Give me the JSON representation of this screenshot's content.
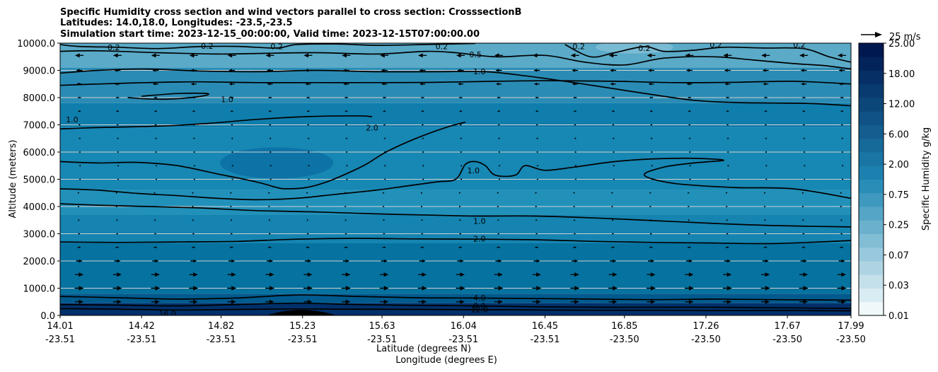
{
  "chart_data": {
    "type": "contour",
    "title_lines": [
      "Specific Humidity cross section and wind vectors parallel to cross section: CrosssectionB",
      "Latitudes: 14.0,18.0, Longitudes: -23.5,-23.5",
      "Simulation start time: 2023-12-15_00:00:00, Valid time: 2023-12-15T07:00:00.00"
    ],
    "ylabel": "Altitude (meters)",
    "xlabel_lat": "Latitude (degrees N)",
    "xlabel_lon": "Longitude (degrees E)",
    "ylim": [
      0,
      10000
    ],
    "y_ticks": [
      "0.0",
      "1000.0",
      "2000.0",
      "3000.0",
      "4000.0",
      "5000.0",
      "6000.0",
      "7000.0",
      "8000.0",
      "9000.0",
      "10000.0"
    ],
    "x_ticks": [
      {
        "lat": "14.01",
        "lon": "-23.51"
      },
      {
        "lat": "14.42",
        "lon": "-23.51"
      },
      {
        "lat": "14.82",
        "lon": "-23.51"
      },
      {
        "lat": "15.23",
        "lon": "-23.51"
      },
      {
        "lat": "15.63",
        "lon": "-23.51"
      },
      {
        "lat": "16.04",
        "lon": "-23.51"
      },
      {
        "lat": "16.45",
        "lon": "-23.51"
      },
      {
        "lat": "16.85",
        "lon": "-23.50"
      },
      {
        "lat": "17.26",
        "lon": "-23.50"
      },
      {
        "lat": "17.67",
        "lon": "-23.50"
      },
      {
        "lat": "17.99",
        "lon": "-23.50"
      }
    ],
    "colorbar": {
      "label": "Specific Humidity g/kg",
      "tick_labels": [
        "0.01",
        "0.03",
        "0.07",
        "0.25",
        "0.75",
        "2.00",
        "6.00",
        "12.00",
        "18.00",
        "25.00"
      ],
      "levels": 20,
      "colormap": "white-to-navy"
    },
    "wind_key": {
      "label": "25 m/s",
      "value": 25
    },
    "contour_labels": [
      {
        "text": "0.2",
        "lat": 14.28,
        "alt": 9850
      },
      {
        "text": "0.2",
        "lat": 14.75,
        "alt": 9900
      },
      {
        "text": "0.2",
        "lat": 15.1,
        "alt": 9880
      },
      {
        "text": "0.2",
        "lat": 15.93,
        "alt": 9880
      },
      {
        "text": "0.5",
        "lat": 16.1,
        "alt": 9580
      },
      {
        "text": "0.2",
        "lat": 16.62,
        "alt": 9880
      },
      {
        "text": "0.2",
        "lat": 16.95,
        "alt": 9820
      },
      {
        "text": "0.2",
        "lat": 17.31,
        "alt": 9950
      },
      {
        "text": "0.2",
        "lat": 17.73,
        "alt": 9950
      },
      {
        "text": "0.2",
        "lat": 18.06,
        "alt": 9900
      },
      {
        "text": "1.0",
        "lat": 16.12,
        "alt": 8960
      },
      {
        "text": "1.0",
        "lat": 14.85,
        "alt": 7930
      },
      {
        "text": "1.0",
        "lat": 14.07,
        "alt": 7200
      },
      {
        "text": "2.0",
        "lat": 15.58,
        "alt": 6900
      },
      {
        "text": "1.0",
        "lat": 16.09,
        "alt": 5330
      },
      {
        "text": "1.0",
        "lat": 16.12,
        "alt": 3470
      },
      {
        "text": "2.0",
        "lat": 16.12,
        "alt": 2820
      },
      {
        "text": "4.0",
        "lat": 16.12,
        "alt": 650
      },
      {
        "text": "8.0",
        "lat": 16.12,
        "alt": 350
      },
      {
        "text": "12.0",
        "lat": 16.12,
        "alt": 220
      },
      {
        "text": "16.0",
        "lat": 14.55,
        "alt": 70
      },
      {
        "text": "16.0",
        "lat": 15.27,
        "alt": 70
      }
    ],
    "contours": [
      {
        "level": "0.2",
        "points": [
          [
            14.01,
            9950
          ],
          [
            14.1,
            9880
          ],
          [
            14.3,
            9850
          ],
          [
            14.5,
            9800
          ],
          [
            14.7,
            9870
          ],
          [
            14.9,
            9880
          ],
          [
            15.1,
            9820
          ],
          [
            15.2,
            9950
          ],
          [
            15.4,
            9970
          ],
          [
            15.6,
            9920
          ],
          [
            15.85,
            9950
          ],
          [
            16.1,
            9990
          ]
        ]
      },
      {
        "level": "0.2",
        "points": [
          [
            16.55,
            9950
          ],
          [
            16.68,
            9500
          ],
          [
            16.8,
            9650
          ],
          [
            16.95,
            9870
          ],
          [
            17.05,
            9700
          ],
          [
            17.2,
            9740
          ],
          [
            17.35,
            9850
          ],
          [
            17.55,
            9820
          ],
          [
            17.75,
            9800
          ],
          [
            17.88,
            9500
          ],
          [
            17.99,
            9300
          ]
        ]
      },
      {
        "level": "0.5",
        "points": [
          [
            14.01,
            9700
          ],
          [
            14.2,
            9720
          ],
          [
            14.5,
            9650
          ],
          [
            14.8,
            9600
          ],
          [
            15.0,
            9620
          ],
          [
            15.3,
            9650
          ],
          [
            15.6,
            9600
          ],
          [
            15.85,
            9700
          ],
          [
            16.0,
            9650
          ],
          [
            16.2,
            9500
          ],
          [
            16.45,
            9550
          ],
          [
            16.65,
            9300
          ],
          [
            16.85,
            9200
          ],
          [
            17.05,
            9450
          ],
          [
            17.3,
            9500
          ],
          [
            17.5,
            9380
          ],
          [
            17.7,
            9250
          ],
          [
            17.85,
            9180
          ],
          [
            17.99,
            9050
          ]
        ]
      },
      {
        "level": "1.0",
        "points": [
          [
            14.01,
            8900
          ],
          [
            14.2,
            9000
          ],
          [
            14.45,
            9050
          ],
          [
            14.7,
            8980
          ],
          [
            15.0,
            8950
          ],
          [
            15.3,
            9000
          ],
          [
            15.6,
            8950
          ],
          [
            15.9,
            8950
          ],
          [
            16.15,
            8950
          ],
          [
            16.35,
            8800
          ],
          [
            16.55,
            8600
          ],
          [
            16.75,
            8380
          ],
          [
            17.0,
            8100
          ],
          [
            17.2,
            7900
          ],
          [
            17.4,
            7820
          ],
          [
            17.6,
            7800
          ],
          [
            17.8,
            7780
          ],
          [
            17.99,
            7700
          ]
        ]
      },
      {
        "level": "1.0",
        "points": [
          [
            14.01,
            8450
          ],
          [
            14.2,
            8500
          ],
          [
            14.45,
            8550
          ],
          [
            14.7,
            8580
          ],
          [
            15.0,
            8550
          ],
          [
            15.3,
            8550
          ],
          [
            15.6,
            8550
          ],
          [
            15.9,
            8560
          ],
          [
            16.2,
            8600
          ],
          [
            16.5,
            8620
          ],
          [
            16.8,
            8600
          ],
          [
            17.1,
            8550
          ],
          [
            17.4,
            8560
          ],
          [
            17.7,
            8600
          ],
          [
            17.99,
            8500
          ]
        ]
      },
      {
        "level": "1.0",
        "points": [
          [
            14.01,
            6850
          ],
          [
            14.2,
            6900
          ],
          [
            14.5,
            6950
          ],
          [
            14.75,
            7050
          ],
          [
            15.0,
            7200
          ],
          [
            15.25,
            7300
          ],
          [
            15.5,
            7330
          ],
          [
            15.58,
            7300
          ]
        ]
      },
      {
        "level": "1.0",
        "points": [
          [
            14.35,
            8000
          ],
          [
            14.45,
            7950
          ],
          [
            14.58,
            7950
          ],
          [
            14.72,
            8050
          ],
          [
            14.75,
            8150
          ],
          [
            14.6,
            8150
          ],
          [
            14.42,
            8050
          ]
        ]
      },
      {
        "level": "2.0",
        "points": [
          [
            14.01,
            5650
          ],
          [
            14.2,
            5600
          ],
          [
            14.4,
            5620
          ],
          [
            14.6,
            5500
          ],
          [
            14.8,
            5200
          ],
          [
            15.0,
            4900
          ],
          [
            15.1,
            4700
          ],
          [
            15.15,
            4650
          ],
          [
            15.25,
            4700
          ],
          [
            15.35,
            4900
          ],
          [
            15.45,
            5200
          ],
          [
            15.55,
            5550
          ],
          [
            15.65,
            6000
          ],
          [
            15.8,
            6500
          ],
          [
            15.95,
            6900
          ],
          [
            16.05,
            7100
          ]
        ]
      },
      {
        "level": "1.0",
        "points": [
          [
            14.01,
            4650
          ],
          [
            14.2,
            4600
          ],
          [
            14.4,
            4480
          ],
          [
            14.6,
            4400
          ],
          [
            14.8,
            4300
          ],
          [
            15.0,
            4250
          ],
          [
            15.2,
            4300
          ],
          [
            15.4,
            4450
          ],
          [
            15.6,
            4600
          ],
          [
            15.75,
            4750
          ],
          [
            15.9,
            4900
          ],
          [
            16.0,
            5000
          ],
          [
            16.05,
            5550
          ],
          [
            16.1,
            5650
          ],
          [
            16.15,
            5500
          ],
          [
            16.2,
            5150
          ],
          [
            16.3,
            5150
          ],
          [
            16.35,
            5500
          ],
          [
            16.45,
            5330
          ],
          [
            16.6,
            5450
          ],
          [
            16.8,
            5650
          ],
          [
            17.0,
            5750
          ],
          [
            17.2,
            5770
          ],
          [
            17.35,
            5700
          ],
          [
            17.2,
            5600
          ],
          [
            17.05,
            5450
          ],
          [
            16.95,
            5150
          ],
          [
            17.1,
            4850
          ],
          [
            17.4,
            4700
          ],
          [
            17.7,
            4650
          ],
          [
            17.99,
            4300
          ]
        ]
      },
      {
        "level": "1.0",
        "points": [
          [
            14.01,
            4100
          ],
          [
            14.2,
            4050
          ],
          [
            14.45,
            4000
          ],
          [
            14.7,
            3950
          ],
          [
            15.0,
            3850
          ],
          [
            15.3,
            3800
          ],
          [
            15.6,
            3730
          ],
          [
            15.9,
            3680
          ],
          [
            16.1,
            3650
          ],
          [
            16.4,
            3650
          ],
          [
            16.7,
            3580
          ],
          [
            17.0,
            3480
          ],
          [
            17.3,
            3380
          ],
          [
            17.6,
            3300
          ],
          [
            17.99,
            3250
          ]
        ]
      },
      {
        "level": "2.0",
        "points": [
          [
            14.01,
            2700
          ],
          [
            14.3,
            2680
          ],
          [
            14.6,
            2700
          ],
          [
            14.9,
            2720
          ],
          [
            15.2,
            2800
          ],
          [
            15.5,
            2830
          ],
          [
            15.8,
            2810
          ],
          [
            16.1,
            2800
          ],
          [
            16.4,
            2780
          ],
          [
            16.7,
            2720
          ],
          [
            17.0,
            2680
          ],
          [
            17.3,
            2660
          ],
          [
            17.6,
            2640
          ],
          [
            17.99,
            2750
          ]
        ]
      },
      {
        "level": "4.0",
        "points": [
          [
            14.01,
            700
          ],
          [
            14.3,
            650
          ],
          [
            14.6,
            600
          ],
          [
            14.9,
            640
          ],
          [
            15.2,
            750
          ],
          [
            15.5,
            700
          ],
          [
            15.8,
            650
          ],
          [
            16.1,
            640
          ],
          [
            16.4,
            620
          ],
          [
            16.7,
            600
          ],
          [
            17.0,
            580
          ],
          [
            17.3,
            600
          ],
          [
            17.6,
            580
          ],
          [
            17.99,
            560
          ]
        ]
      },
      {
        "level": "8.0",
        "points": [
          [
            14.01,
            400
          ],
          [
            14.3,
            380
          ],
          [
            14.6,
            350
          ],
          [
            14.9,
            400
          ],
          [
            15.2,
            450
          ],
          [
            15.5,
            400
          ],
          [
            15.8,
            370
          ],
          [
            16.1,
            350
          ],
          [
            16.4,
            320
          ],
          [
            16.7,
            300
          ],
          [
            17.0,
            300
          ],
          [
            17.3,
            300
          ],
          [
            17.6,
            280
          ],
          [
            17.99,
            260
          ]
        ]
      },
      {
        "level": "12.0",
        "points": [
          [
            14.01,
            250
          ],
          [
            14.3,
            230
          ],
          [
            14.6,
            200
          ],
          [
            14.9,
            220
          ],
          [
            15.2,
            240
          ],
          [
            15.5,
            230
          ],
          [
            15.8,
            220
          ],
          [
            16.1,
            210
          ],
          [
            16.4,
            200
          ],
          [
            16.7,
            190
          ],
          [
            17.0,
            190
          ],
          [
            17.3,
            180
          ],
          [
            17.6,
            180
          ],
          [
            17.99,
            170
          ]
        ]
      }
    ],
    "terrain_bump": {
      "lat_start": 15.05,
      "lat_peak": 15.22,
      "lat_end": 15.4,
      "alt_peak": 200
    }
  }
}
